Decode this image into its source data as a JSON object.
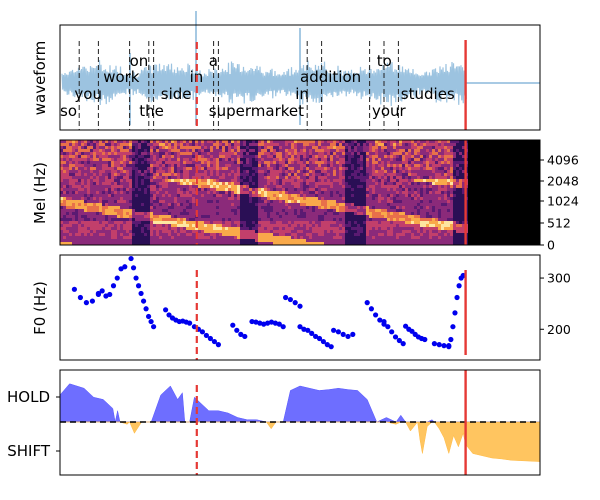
{
  "chart_data": [
    {
      "type": "line",
      "panel": "waveform",
      "ylabel": "waveform",
      "words_row1": [
        {
          "word": "on",
          "t": 0.145
        },
        {
          "word": "a",
          "t": 0.31
        },
        {
          "word": "to",
          "t": 0.66
        }
      ],
      "words_row2": [
        {
          "word": "work",
          "t": 0.09
        },
        {
          "word": "in",
          "t": 0.27
        },
        {
          "word": "addition",
          "t": 0.5
        }
      ],
      "words_row3": [
        {
          "word": "you",
          "t": 0.03
        },
        {
          "word": "side",
          "t": 0.21
        },
        {
          "word": "in",
          "t": 0.49
        },
        {
          "word": "studies",
          "t": 0.71
        }
      ],
      "words_row4": [
        {
          "word": "so",
          "t": 0.0
        },
        {
          "word": "the",
          "t": 0.165
        },
        {
          "word": "supermarket",
          "t": 0.31
        },
        {
          "word": "your",
          "t": 0.65
        }
      ],
      "word_boundaries": [
        0.04,
        0.08,
        0.145,
        0.185,
        0.195,
        0.32,
        0.33,
        0.515,
        0.545,
        0.645,
        0.675,
        0.705
      ],
      "dashed_red_marker": 0.285,
      "solid_red_marker": 0.845,
      "signal_color": "#9cc3e0"
    },
    {
      "type": "heatmap",
      "panel": "mel",
      "ylabel": "Mel (Hz)",
      "yticks": [
        "0",
        "512",
        "1024",
        "2048",
        "4096"
      ],
      "dashed_red_marker": 0.285,
      "solid_red_marker": 0.845
    },
    {
      "type": "scatter",
      "panel": "f0",
      "ylabel": "F0 (Hz)",
      "yticks": [
        "200",
        "300"
      ],
      "ylim": [
        140,
        345
      ],
      "segments": [
        {
          "t0": 0.03,
          "t1": 0.08,
          "v": [
            278,
            262,
            252,
            255,
            268
          ]
        },
        {
          "t0": 0.08,
          "t1": 0.135,
          "v": [
            270,
            275,
            265,
            268,
            285,
            300,
            318,
            322
          ]
        },
        {
          "t0": 0.148,
          "t1": 0.195,
          "v": [
            338,
            320,
            300,
            285,
            270,
            255,
            240,
            225,
            215,
            205
          ]
        },
        {
          "t0": 0.22,
          "t1": 0.27,
          "v": [
            238,
            228,
            222,
            218,
            215,
            216,
            214,
            212
          ]
        },
        {
          "t0": 0.28,
          "t1": 0.33,
          "v": [
            205,
            200,
            195,
            188,
            182,
            176,
            170
          ]
        },
        {
          "t0": 0.36,
          "t1": 0.385,
          "v": [
            208,
            198,
            190,
            186
          ]
        },
        {
          "t0": 0.4,
          "t1": 0.465,
          "v": [
            215,
            214,
            212,
            210,
            212,
            214,
            212,
            210,
            205
          ]
        },
        {
          "t0": 0.47,
          "t1": 0.5,
          "v": [
            262,
            258,
            252,
            245
          ]
        },
        {
          "t0": 0.5,
          "t1": 0.565,
          "v": [
            205,
            200,
            198,
            192,
            186,
            182,
            176,
            170,
            166
          ]
        },
        {
          "t0": 0.57,
          "t1": 0.61,
          "v": [
            198,
            195,
            190,
            186,
            190
          ]
        },
        {
          "t0": 0.64,
          "t1": 0.675,
          "v": [
            252,
            240,
            228,
            218,
            210
          ]
        },
        {
          "t0": 0.675,
          "t1": 0.715,
          "v": [
            215,
            205,
            195,
            185,
            178,
            172
          ]
        },
        {
          "t0": 0.72,
          "t1": 0.76,
          "v": [
            206,
            200,
            196,
            190,
            185,
            182,
            180
          ]
        },
        {
          "t0": 0.78,
          "t1": 0.81,
          "v": [
            172,
            170,
            168,
            166
          ]
        },
        {
          "t0": 0.81,
          "t1": 0.84,
          "v": [
            168,
            180,
            205,
            232,
            262,
            285,
            300,
            305
          ]
        }
      ],
      "dashed_red_marker": 0.285,
      "solid_red_marker": 0.845,
      "point_color": "#0000ee"
    },
    {
      "type": "area",
      "panel": "turn_prediction",
      "yticks": [
        "HOLD",
        "SHIFT"
      ],
      "ylim": [
        -1,
        1
      ],
      "x": [
        0.0,
        0.02,
        0.05,
        0.07,
        0.09,
        0.11,
        0.115,
        0.12,
        0.125,
        0.14,
        0.145,
        0.155,
        0.17,
        0.18,
        0.19,
        0.21,
        0.23,
        0.245,
        0.255,
        0.26,
        0.27,
        0.28,
        0.3,
        0.31,
        0.33,
        0.35,
        0.37,
        0.39,
        0.41,
        0.43,
        0.44,
        0.45,
        0.465,
        0.48,
        0.5,
        0.52,
        0.54,
        0.56,
        0.58,
        0.6,
        0.62,
        0.64,
        0.66,
        0.68,
        0.7,
        0.71,
        0.72,
        0.73,
        0.745,
        0.75,
        0.755,
        0.765,
        0.775,
        0.78,
        0.79,
        0.8,
        0.81,
        0.82,
        0.83,
        0.84,
        0.845,
        0.86,
        0.88,
        0.9,
        0.92,
        0.94,
        0.96,
        0.98,
        1.0
      ],
      "y": [
        0.6,
        0.85,
        0.75,
        0.55,
        0.5,
        0.3,
        0.0,
        0.25,
        0.0,
        -0.05,
        0.0,
        -0.25,
        0.0,
        0.0,
        0.0,
        0.6,
        0.8,
        0.5,
        0.65,
        0.0,
        0.0,
        0.55,
        0.35,
        0.25,
        0.25,
        0.2,
        0.1,
        0.05,
        0.05,
        0.0,
        -0.15,
        0.0,
        0.0,
        0.7,
        0.8,
        0.75,
        0.7,
        0.72,
        0.75,
        0.72,
        0.7,
        0.5,
        0.0,
        0.1,
        -0.05,
        0.15,
        0.0,
        -0.2,
        0.0,
        -0.4,
        -0.7,
        -0.1,
        0.05,
        0.0,
        -0.15,
        -0.35,
        -0.7,
        -0.3,
        -0.55,
        -0.25,
        -0.5,
        -0.7,
        -0.75,
        -0.8,
        -0.82,
        -0.85,
        -0.86,
        -0.87,
        -0.88
      ],
      "hold_color": "#5555ff",
      "shift_color": "#ffbb44",
      "dashed_red_marker": 0.285,
      "solid_red_marker": 0.845
    }
  ]
}
